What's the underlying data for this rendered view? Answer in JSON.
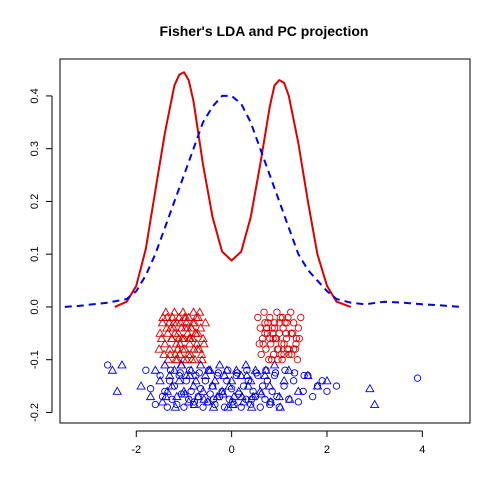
{
  "chart_data": {
    "type": "scatter",
    "title": "Fisher's LDA and PC projection",
    "xlabel": "",
    "ylabel": "",
    "xlim": [
      -3.6,
      5.0
    ],
    "ylim": [
      -0.22,
      0.47
    ],
    "x_ticks": [
      -2,
      0,
      2,
      4
    ],
    "y_ticks": [
      -0.2,
      -0.1,
      0.0,
      0.1,
      0.2,
      0.3,
      0.4
    ],
    "y_tick_labels": [
      "-0.2",
      "-0.1",
      "0.0",
      "0.1",
      "0.2",
      "0.3",
      "0.4"
    ],
    "grid": false,
    "legend": null,
    "colors": {
      "red": "#dd0000",
      "blue": "#0000ee"
    },
    "series": [
      {
        "kind": "line",
        "color": "red",
        "style": "solid",
        "x": [
          -2.45,
          -2.2,
          -2.0,
          -1.8,
          -1.6,
          -1.4,
          -1.2,
          -1.1,
          -1.0,
          -0.9,
          -0.8,
          -0.6,
          -0.4,
          -0.2,
          0.0,
          0.2,
          0.4,
          0.6,
          0.8,
          0.9,
          1.0,
          1.1,
          1.2,
          1.4,
          1.6,
          1.8,
          2.0,
          2.2,
          2.5
        ],
        "y": [
          0.0,
          0.01,
          0.04,
          0.11,
          0.22,
          0.33,
          0.42,
          0.44,
          0.445,
          0.43,
          0.39,
          0.27,
          0.17,
          0.105,
          0.088,
          0.105,
          0.17,
          0.27,
          0.38,
          0.42,
          0.43,
          0.425,
          0.4,
          0.31,
          0.2,
          0.1,
          0.04,
          0.01,
          0.0
        ]
      },
      {
        "kind": "line",
        "color": "blue",
        "style": "dashed",
        "x": [
          -3.5,
          -3.2,
          -3.0,
          -2.6,
          -2.2,
          -2.0,
          -1.8,
          -1.6,
          -1.4,
          -1.2,
          -1.0,
          -0.8,
          -0.6,
          -0.4,
          -0.2,
          0.0,
          0.2,
          0.4,
          0.6,
          0.8,
          1.0,
          1.2,
          1.4,
          1.6,
          1.8,
          2.0,
          2.2,
          2.5,
          2.8,
          3.2,
          3.6,
          4.0,
          4.4,
          4.8
        ],
        "y": [
          0.0,
          0.002,
          0.004,
          0.008,
          0.015,
          0.03,
          0.06,
          0.1,
          0.15,
          0.2,
          0.25,
          0.3,
          0.35,
          0.38,
          0.4,
          0.4,
          0.385,
          0.35,
          0.3,
          0.25,
          0.2,
          0.15,
          0.1,
          0.07,
          0.05,
          0.03,
          0.015,
          0.008,
          0.005,
          0.01,
          0.008,
          0.005,
          0.003,
          0.0
        ]
      },
      {
        "kind": "points",
        "color": "red",
        "marker": "triangle",
        "x": [
          -1.5,
          -1.45,
          -1.4,
          -1.35,
          -1.3,
          -1.28,
          -1.25,
          -1.2,
          -1.18,
          -1.15,
          -1.12,
          -1.1,
          -1.08,
          -1.05,
          -1.02,
          -1.0,
          -0.98,
          -0.95,
          -0.92,
          -0.9,
          -0.88,
          -0.85,
          -0.82,
          -0.8,
          -0.78,
          -0.75,
          -0.72,
          -0.7,
          -0.65,
          -0.6,
          -0.55,
          -1.42,
          -1.33,
          -1.22,
          -1.16,
          -1.06,
          -0.96,
          -0.86,
          -0.76,
          -0.68,
          -1.38,
          -1.26,
          -1.14,
          -1.03,
          -0.93,
          -0.83,
          -0.73,
          -1.47,
          -1.31,
          -1.19,
          -1.09,
          -0.99,
          -0.89,
          -0.79,
          -0.62,
          -1.36,
          -1.24,
          -1.11,
          -1.01,
          -0.91,
          -0.81,
          -0.71,
          -0.58,
          -1.44,
          -1.29,
          -1.17,
          -1.07,
          -0.97,
          -0.87,
          -0.77,
          -0.67,
          -1.52,
          -1.34,
          -1.21,
          -1.13,
          -1.04,
          -0.94,
          -0.84,
          -0.74,
          -0.63
        ],
        "y": [
          -0.05,
          -0.03,
          -0.07,
          -0.02,
          -0.08,
          -0.04,
          -0.06,
          -0.01,
          -0.09,
          -0.03,
          -0.05,
          -0.02,
          -0.07,
          -0.04,
          -0.01,
          -0.06,
          -0.08,
          -0.03,
          -0.05,
          -0.02,
          -0.07,
          -0.04,
          -0.06,
          -0.01,
          -0.03,
          -0.05,
          -0.08,
          -0.02,
          -0.04,
          -0.06,
          -0.03,
          -0.09,
          -0.1,
          -0.04,
          -0.07,
          -0.11,
          -0.02,
          -0.09,
          -0.05,
          -0.08,
          -0.01,
          -0.06,
          -0.1,
          -0.08,
          -0.04,
          -0.1,
          -0.07,
          -0.06,
          -0.03,
          -0.05,
          -0.09,
          -0.02,
          -0.06,
          -0.08,
          -0.1,
          -0.04,
          -0.02,
          -0.06,
          -0.1,
          -0.09,
          -0.03,
          -0.05,
          -0.07,
          -0.02,
          -0.09,
          -0.1,
          -0.03,
          -0.04,
          -0.06,
          -0.1,
          -0.01,
          -0.08,
          -0.05,
          -0.03,
          -0.08,
          -0.06,
          -0.1,
          -0.04,
          -0.02,
          -0.09
        ]
      },
      {
        "kind": "points",
        "color": "red",
        "marker": "circle",
        "x": [
          0.55,
          0.6,
          0.65,
          0.7,
          0.72,
          0.75,
          0.8,
          0.82,
          0.85,
          0.88,
          0.9,
          0.92,
          0.95,
          0.98,
          1.0,
          1.02,
          1.05,
          1.08,
          1.1,
          1.12,
          1.15,
          1.18,
          1.2,
          1.25,
          1.3,
          1.35,
          1.4,
          1.45,
          0.62,
          0.68,
          0.78,
          0.86,
          0.96,
          1.06,
          1.16,
          1.26,
          1.36,
          0.58,
          0.74,
          0.84,
          0.94,
          1.04,
          1.14,
          1.24,
          1.34,
          1.42,
          0.66,
          0.76,
          0.87,
          0.97,
          1.07,
          1.17,
          1.28,
          1.38,
          0.7,
          0.9,
          1.1,
          1.3,
          0.8,
          1.0,
          1.2
        ],
        "y": [
          -0.02,
          -0.04,
          -0.06,
          -0.03,
          -0.08,
          -0.05,
          -0.02,
          -0.07,
          -0.04,
          -0.09,
          -0.03,
          -0.06,
          -0.01,
          -0.08,
          -0.05,
          -0.02,
          -0.07,
          -0.04,
          -0.09,
          -0.03,
          -0.06,
          -0.02,
          -0.08,
          -0.05,
          -0.03,
          -0.07,
          -0.04,
          -0.02,
          -0.09,
          -0.01,
          -0.1,
          -0.05,
          -0.08,
          -0.1,
          -0.03,
          -0.09,
          -0.06,
          -0.07,
          -0.04,
          -0.1,
          -0.06,
          -0.09,
          -0.05,
          -0.01,
          -0.08,
          -0.06,
          -0.07,
          -0.03,
          -0.06,
          -0.1,
          -0.02,
          -0.08,
          -0.05,
          -0.1,
          -0.05,
          -0.04,
          -0.07,
          -0.08,
          -0.06,
          -0.03,
          -0.09
        ]
      },
      {
        "kind": "points",
        "color": "blue",
        "marker": "triangle",
        "x": [
          -2.5,
          -2.4,
          -2.3,
          -1.9,
          -1.7,
          -1.6,
          -1.5,
          -1.45,
          -1.4,
          -1.35,
          -1.3,
          -1.25,
          -1.2,
          -1.15,
          -1.1,
          -1.05,
          -1.0,
          -0.95,
          -0.9,
          -0.85,
          -0.8,
          -0.75,
          -0.7,
          -0.65,
          -0.6,
          -0.55,
          -0.5,
          -0.45,
          -0.4,
          -0.35,
          -0.3,
          -0.25,
          -0.2,
          -0.15,
          -0.1,
          -0.05,
          0.0,
          0.05,
          0.1,
          0.15,
          0.2,
          0.25,
          0.3,
          0.35,
          0.4,
          0.45,
          0.5,
          0.6,
          0.7,
          0.8,
          0.9,
          1.0,
          1.1,
          1.2,
          1.4,
          1.6,
          1.8,
          2.0,
          2.9,
          3.0,
          -1.38,
          -1.18,
          -0.98,
          -0.78,
          -0.58,
          -0.38,
          -0.18,
          0.02,
          0.22,
          0.42,
          0.62,
          0.82,
          1.02,
          1.22,
          -0.88,
          -0.48,
          -0.08,
          0.32,
          0.72
        ],
        "y": [
          -0.12,
          -0.16,
          -0.11,
          -0.15,
          -0.17,
          -0.12,
          -0.14,
          -0.18,
          -0.11,
          -0.16,
          -0.13,
          -0.15,
          -0.12,
          -0.17,
          -0.14,
          -0.11,
          -0.16,
          -0.13,
          -0.18,
          -0.12,
          -0.15,
          -0.14,
          -0.17,
          -0.11,
          -0.16,
          -0.13,
          -0.18,
          -0.12,
          -0.15,
          -0.14,
          -0.17,
          -0.11,
          -0.16,
          -0.13,
          -0.12,
          -0.15,
          -0.14,
          -0.17,
          -0.12,
          -0.16,
          -0.13,
          -0.18,
          -0.11,
          -0.15,
          -0.14,
          -0.17,
          -0.12,
          -0.16,
          -0.13,
          -0.15,
          -0.11,
          -0.17,
          -0.14,
          -0.12,
          -0.16,
          -0.13,
          -0.15,
          -0.14,
          -0.155,
          -0.185,
          -0.17,
          -0.19,
          -0.165,
          -0.185,
          -0.175,
          -0.19,
          -0.165,
          -0.185,
          -0.17,
          -0.19,
          -0.165,
          -0.18,
          -0.19,
          -0.175,
          -0.13,
          -0.12,
          -0.19,
          -0.13,
          -0.12
        ]
      },
      {
        "kind": "points",
        "color": "blue",
        "marker": "circle",
        "x": [
          -2.6,
          -1.8,
          -1.7,
          -1.6,
          -1.5,
          -1.45,
          -1.4,
          -1.35,
          -1.3,
          -1.25,
          -1.2,
          -1.15,
          -1.1,
          -1.05,
          -1.0,
          -0.95,
          -0.9,
          -0.85,
          -0.8,
          -0.75,
          -0.7,
          -0.65,
          -0.6,
          -0.55,
          -0.5,
          -0.45,
          -0.4,
          -0.35,
          -0.3,
          -0.25,
          -0.2,
          -0.15,
          -0.1,
          -0.05,
          0.0,
          0.05,
          0.1,
          0.15,
          0.2,
          0.25,
          0.3,
          0.35,
          0.4,
          0.45,
          0.5,
          0.55,
          0.6,
          0.65,
          0.7,
          0.75,
          0.8,
          0.85,
          0.9,
          0.95,
          1.0,
          1.1,
          1.2,
          1.3,
          1.4,
          1.5,
          1.6,
          1.7,
          1.8,
          1.9,
          2.0,
          2.2,
          3.9,
          -1.28,
          -1.08,
          -0.88,
          -0.68,
          -0.48,
          -0.28,
          -0.08,
          0.12,
          0.32,
          0.52,
          0.72,
          0.92,
          1.12,
          1.32,
          1.52,
          -0.78,
          -0.38,
          0.02,
          0.42,
          0.82
        ],
        "y": [
          -0.11,
          -0.12,
          -0.155,
          -0.185,
          -0.13,
          -0.17,
          -0.16,
          -0.19,
          -0.14,
          -0.175,
          -0.15,
          -0.185,
          -0.13,
          -0.165,
          -0.19,
          -0.14,
          -0.175,
          -0.16,
          -0.185,
          -0.13,
          -0.17,
          -0.155,
          -0.19,
          -0.14,
          -0.18,
          -0.165,
          -0.15,
          -0.185,
          -0.13,
          -0.17,
          -0.16,
          -0.19,
          -0.14,
          -0.175,
          -0.155,
          -0.185,
          -0.13,
          -0.165,
          -0.19,
          -0.15,
          -0.175,
          -0.14,
          -0.185,
          -0.16,
          -0.17,
          -0.13,
          -0.19,
          -0.15,
          -0.175,
          -0.14,
          -0.185,
          -0.16,
          -0.13,
          -0.17,
          -0.19,
          -0.15,
          -0.175,
          -0.14,
          -0.18,
          -0.16,
          -0.13,
          -0.17,
          -0.15,
          -0.14,
          -0.16,
          -0.15,
          -0.135,
          -0.12,
          -0.125,
          -0.12,
          -0.125,
          -0.12,
          -0.125,
          -0.12,
          -0.125,
          -0.12,
          -0.125,
          -0.12,
          -0.125,
          -0.12,
          -0.125,
          -0.13,
          -0.18,
          -0.175,
          -0.18,
          -0.175,
          -0.18
        ]
      }
    ]
  }
}
